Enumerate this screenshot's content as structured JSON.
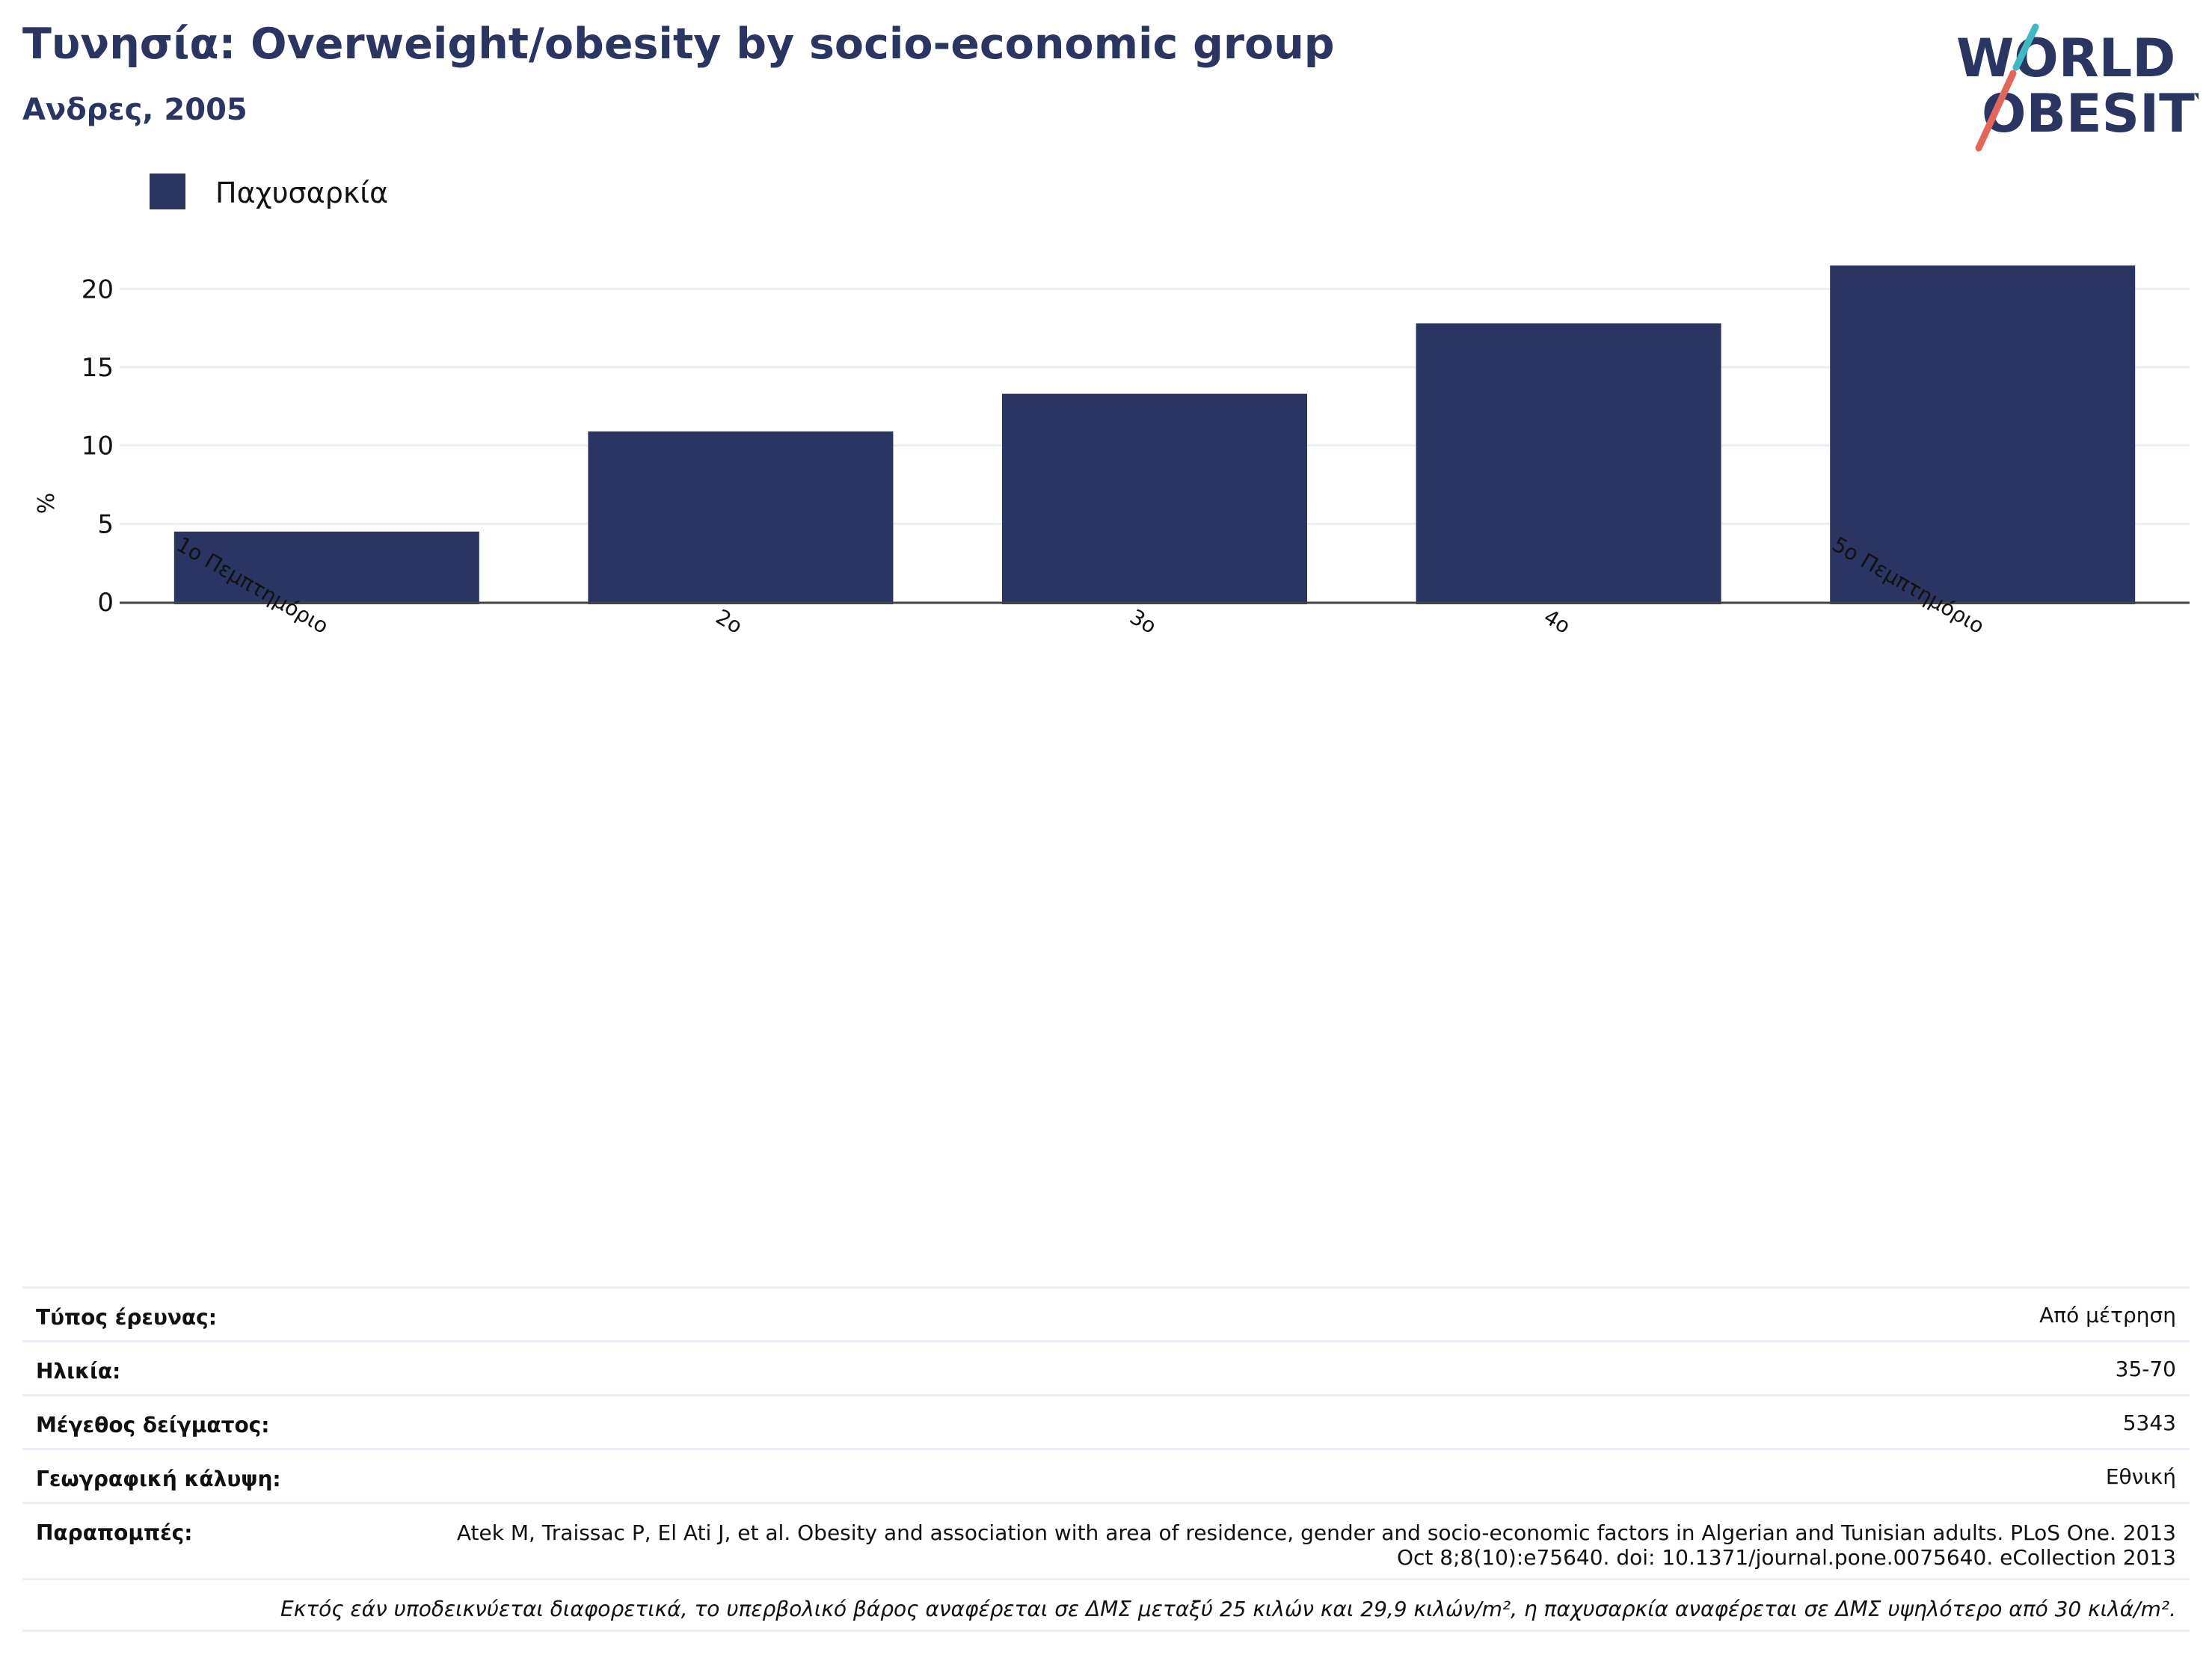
{
  "header": {
    "title": "Τυνησία: Overweight/obesity by socio-economic group",
    "subtitle": "Ανδρες, 2005"
  },
  "logo": {
    "line1": "WORLD",
    "line2": "OBESITY",
    "text_color": "#2a3562",
    "slash_colors": [
      "#3fb8c4",
      "#e2665a"
    ]
  },
  "chart_data": {
    "type": "bar",
    "categories": [
      "1ο Πεμπτημόριο",
      "2ο",
      "3ο",
      "4ο",
      "5ο Πεμπτημόριο"
    ],
    "series": [
      {
        "name": "Παχυσαρκία",
        "values": [
          4.5,
          10.9,
          13.3,
          17.8,
          21.5
        ],
        "color": "#2a3562"
      }
    ],
    "ylabel": "%",
    "xlabel": "",
    "ylim": [
      0,
      22.5
    ],
    "yticks": [
      0,
      5,
      10,
      15,
      20
    ],
    "grid": true,
    "legend_position": "top-left"
  },
  "info": {
    "rows": [
      {
        "key": "Τύπος έρευνας:",
        "value": "Από μέτρηση"
      },
      {
        "key": "Ηλικία:",
        "value": "35-70"
      },
      {
        "key": "Μέγεθος δείγματος:",
        "value": "5343"
      },
      {
        "key": "Γεωγραφική κάλυψη:",
        "value": "Εθνική"
      },
      {
        "key": "Παραπομπές:",
        "value": "Atek M, Traissac P, El Ati J, et al. Obesity and association with area of residence, gender and socio-economic factors in Algerian and Tunisian adults. PLoS One. 2013 Oct 8;8(10):e75640. doi: 10.1371/journal.pone.0075640. eCollection 2013"
      }
    ],
    "footnote": "Εκτός εάν υποδεικνύεται διαφορετικά, το υπερβολικό βάρος αναφέρεται σε ΔΜΣ μεταξύ 25 κιλών και 29,9 κιλών/m², η παχυσαρκία αναφέρεται σε ΔΜΣ υψηλότερο από 30 κιλά/m²."
  }
}
